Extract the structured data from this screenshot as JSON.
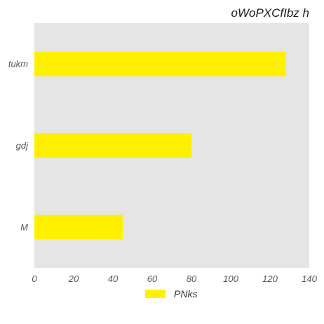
{
  "chart_data": {
    "type": "bar",
    "orientation": "horizontal",
    "title": "oWoPXCfIbz h",
    "xlabel": "",
    "ylabel": "",
    "categories": [
      "tukm",
      "gdj",
      "M"
    ],
    "series": [
      {
        "name": "PNks",
        "values": [
          128,
          80,
          45
        ],
        "color": "#fff000"
      }
    ],
    "xlim": [
      0,
      140
    ],
    "xticks": [
      0,
      20,
      40,
      60,
      80,
      100,
      120,
      140
    ],
    "grid": false,
    "legend_position": "bottom-center",
    "plot_background": "#e5e5e5"
  }
}
